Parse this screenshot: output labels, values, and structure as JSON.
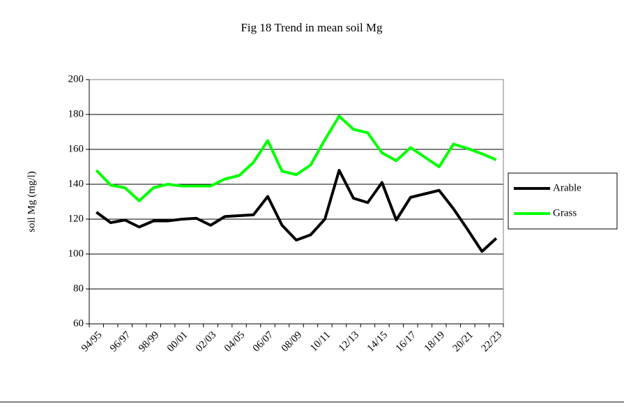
{
  "chart_data": {
    "type": "line",
    "title": "Fig 18 Trend in mean soil Mg",
    "y_label": "soil Mg (mg/l)",
    "categories": [
      "94/95",
      null,
      "96/97",
      null,
      "98/99",
      null,
      "00/01",
      null,
      "02/03",
      null,
      "04/05",
      null,
      "06/07",
      null,
      "08/09",
      null,
      "10/11",
      null,
      "12/13",
      null,
      "14/15",
      null,
      "16/17",
      null,
      "18/19",
      null,
      "20/21",
      null,
      "22/23"
    ],
    "series": [
      {
        "name": "Arable",
        "color": "#000000",
        "values": [
          124,
          118,
          119.5,
          115.5,
          119,
          119,
          120,
          120.5,
          116.5,
          121.5,
          122,
          122.5,
          133,
          116.5,
          108,
          111,
          120,
          148,
          132,
          129.5,
          141,
          119.5,
          132.5,
          134.5,
          136.5,
          126,
          114,
          101.5,
          109
        ]
      },
      {
        "name": "Grass",
        "color": "#00ff00",
        "values": [
          148,
          139.5,
          138,
          130.5,
          138,
          140,
          139,
          139,
          139,
          143,
          145,
          152.5,
          165,
          147.5,
          145.5,
          151,
          165.5,
          179,
          171.5,
          169.5,
          158,
          153.5,
          161,
          155.5,
          150,
          163,
          160.5,
          157.5,
          154
        ]
      }
    ],
    "ylim": [
      60,
      200
    ],
    "yticks": [
      60,
      80,
      100,
      120,
      140,
      160,
      180,
      200
    ],
    "grid": true,
    "legend": "right"
  }
}
